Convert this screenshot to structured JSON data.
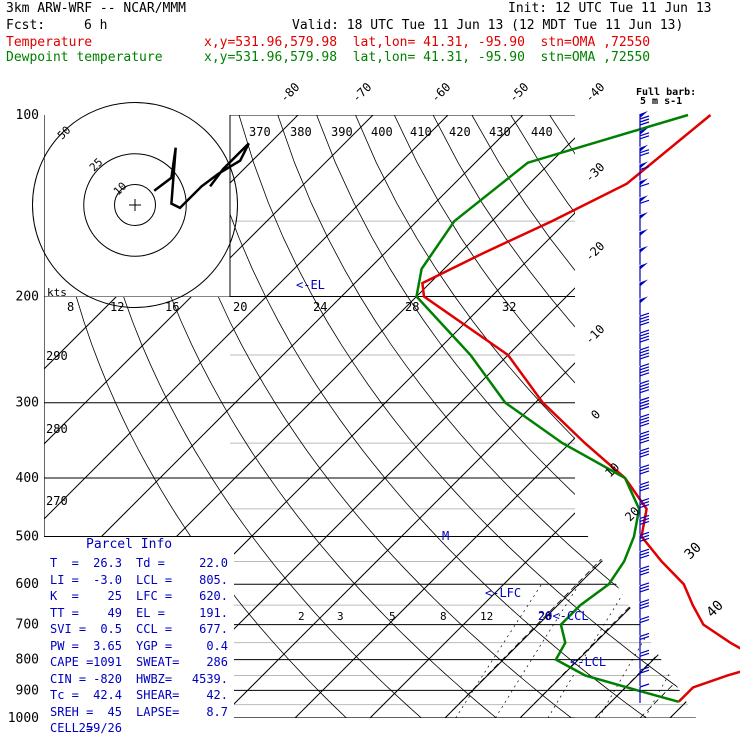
{
  "header": {
    "model": "3km ARW-WRF -- NCAR/MMM",
    "init": "Init: 12 UTC Tue 11 Jun 13",
    "fcst_label": "Fcst:",
    "fcst_value": "6 h",
    "valid": "Valid: 18 UTC Tue 11 Jun 13 (12 MDT Tue 11 Jun 13)",
    "temp_label": "Temperature",
    "temp_info": "x,y=531.96,579.98  lat,lon= 41.31, -95.90  stn=OMA ,72550",
    "dew_label": "Dewpoint temperature",
    "dew_info": "x,y=531.96,579.98  lat,lon= 41.31, -95.90  stn=OMA ,72550"
  },
  "colors": {
    "temperature": "#e00000",
    "dewpoint": "#008000",
    "info": "#0000c0",
    "grid": "#000000"
  },
  "chart_data": {
    "type": "line",
    "title": "",
    "ylabel": "",
    "xlabel": "",
    "y_scale": "log",
    "pressure_levels": [
      100,
      200,
      300,
      400,
      500,
      600,
      700,
      800,
      900,
      1000
    ],
    "top_isotherm_labels": [
      "-80",
      "-70",
      "-60",
      "-50",
      "-40"
    ],
    "right_isotherm_labels": [
      "-30",
      "-20",
      "-10",
      "0",
      "10",
      "20",
      "30",
      "40"
    ],
    "theta_labels": [
      "370",
      "380",
      "390",
      "400",
      "410",
      "420",
      "430",
      "440",
      "290",
      "280",
      "270"
    ],
    "mixing_ratio_labels": [
      "2",
      "3",
      "5",
      "8",
      "12",
      "20"
    ],
    "series": [
      {
        "name": "Temperature",
        "points": [
          [
            100,
            -55
          ],
          [
            130,
            -57
          ],
          [
            150,
            -62
          ],
          [
            170,
            -67
          ],
          [
            190,
            -71
          ],
          [
            200,
            -69
          ],
          [
            250,
            -50
          ],
          [
            300,
            -39
          ],
          [
            350,
            -28
          ],
          [
            400,
            -18
          ],
          [
            450,
            -11
          ],
          [
            500,
            -8
          ],
          [
            550,
            -2
          ],
          [
            600,
            4
          ],
          [
            650,
            8
          ],
          [
            700,
            12
          ],
          [
            750,
            18
          ],
          [
            790,
            23
          ],
          [
            830,
            24
          ],
          [
            850,
            22
          ],
          [
            890,
            19
          ],
          [
            940,
            19
          ]
        ]
      },
      {
        "name": "Dewpoint temperature",
        "points": [
          [
            100,
            -58
          ],
          [
            120,
            -73
          ],
          [
            150,
            -75
          ],
          [
            180,
            -73
          ],
          [
            200,
            -70
          ],
          [
            250,
            -55
          ],
          [
            300,
            -44
          ],
          [
            350,
            -31
          ],
          [
            400,
            -18
          ],
          [
            450,
            -12
          ],
          [
            500,
            -9
          ],
          [
            550,
            -7
          ],
          [
            600,
            -6
          ],
          [
            650,
            -7
          ],
          [
            700,
            -7
          ],
          [
            750,
            -4
          ],
          [
            800,
            -3
          ],
          [
            850,
            3
          ],
          [
            900,
            12
          ],
          [
            940,
            19
          ]
        ]
      }
    ],
    "annotations": [
      "<-EL",
      "<-LFC",
      "<-LCL",
      "20<-CCL",
      "M"
    ],
    "hodograph": {
      "kts_label": "kts",
      "ring_labels": [
        "10",
        "25",
        "50"
      ],
      "speed_ticks": [
        "8",
        "12",
        "16",
        "20",
        "24",
        "28",
        "32"
      ],
      "trace": [
        [
          -6,
          -1
        ],
        [
          -2,
          -4
        ],
        [
          -1,
          -11
        ],
        [
          -2,
          2
        ],
        [
          0,
          3
        ],
        [
          5,
          -2
        ],
        [
          9,
          -5
        ],
        [
          14,
          -8
        ],
        [
          16,
          -12
        ],
        [
          10,
          -6
        ],
        [
          7,
          -2
        ]
      ]
    },
    "wind_barbs": {
      "label": "Full barb: 5 m s-1",
      "speed_ms": [
        40,
        38,
        35,
        33,
        32,
        30,
        28,
        27,
        27,
        27,
        26,
        25,
        24,
        24,
        23,
        22,
        20,
        20,
        20,
        20,
        19,
        19,
        19,
        18,
        18,
        17,
        17,
        16,
        16,
        15,
        14,
        13,
        11,
        10,
        9
      ]
    }
  },
  "parcel_info": {
    "title": "Parcel Info",
    "rows": [
      [
        "T  =",
        "26.3",
        "Td =",
        "22.0"
      ],
      [
        "LI =",
        "-3.0",
        "LCL =",
        "805."
      ],
      [
        "K  =",
        "25",
        "LFC =",
        "620."
      ],
      [
        "TT =",
        "49",
        "EL =",
        "191."
      ],
      [
        "SVI =",
        "0.5",
        "CCL =",
        "677."
      ],
      [
        "PW =",
        "3.65",
        "YGP =",
        "0.4"
      ],
      [
        "CAPE =",
        "1091",
        "SWEAT=",
        "286"
      ],
      [
        "CIN =",
        "-820",
        "HWBZ=",
        "4539."
      ],
      [
        "Tc =",
        "42.4",
        "SHEAR=",
        "42."
      ],
      [
        "SREH =",
        "45",
        "LAPSE=",
        "8.7"
      ],
      [
        "CELL =",
        "259/26",
        "",
        ""
      ]
    ]
  }
}
